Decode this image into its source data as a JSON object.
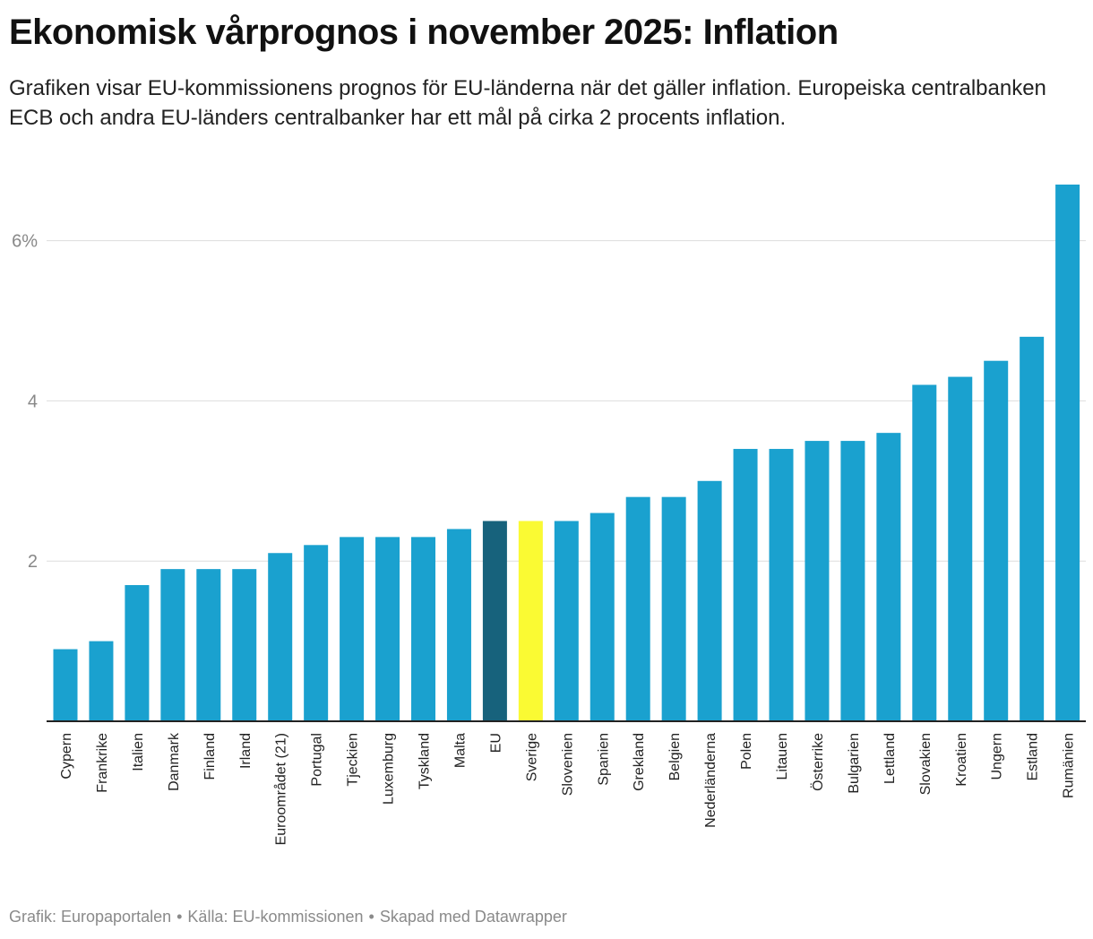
{
  "header": {
    "title": "Ekonomisk vårprognos i november 2025: Inflation",
    "subtitle": "Grafiken visar EU-kommissionens prognos för EU-länderna när det gäller inflation. Europeiska centralbanken ECB och andra EU-länders centralbanker har ett mål på cirka 2 procents inflation."
  },
  "footer": {
    "graphic": "Grafik: Europaportalen",
    "source": "Källa: EU-kommissionen",
    "made_with": "Skapad med Datawrapper",
    "separator": "•"
  },
  "colors": {
    "bar": "#1aa1cf",
    "eu_bar": "#17627c",
    "sweden_bar": "#fafa33",
    "grid": "#dddddd",
    "axis": "#222222",
    "tick_label": "#888888"
  },
  "chart_data": {
    "type": "bar",
    "title": "Ekonomisk vårprognos i november 2025: Inflation",
    "xlabel": "",
    "ylabel": "",
    "ylim": [
      0,
      6.7
    ],
    "yticks": [
      {
        "value": 2,
        "label": "2"
      },
      {
        "value": 4,
        "label": "4"
      },
      {
        "value": 6,
        "label": "6%"
      }
    ],
    "grid": true,
    "highlight": {
      "EU": "eu_bar",
      "Sverige": "sweden_bar"
    },
    "categories": [
      "Cypern",
      "Frankrike",
      "Italien",
      "Danmark",
      "Finland",
      "Irland",
      "Euroområdet (21)",
      "Portugal",
      "Tjeckien",
      "Luxemburg",
      "Tyskland",
      "Malta",
      "EU",
      "Sverige",
      "Slovenien",
      "Spanien",
      "Grekland",
      "Belgien",
      "Nederländerna",
      "Polen",
      "Litauen",
      "Österrike",
      "Bulgarien",
      "Lettland",
      "Slovakien",
      "Kroatien",
      "Ungern",
      "Estland",
      "Rumänien"
    ],
    "values": [
      0.9,
      1.0,
      1.7,
      1.9,
      1.9,
      1.9,
      2.1,
      2.2,
      2.3,
      2.3,
      2.3,
      2.4,
      2.5,
      2.5,
      2.5,
      2.6,
      2.8,
      2.8,
      3.0,
      3.4,
      3.4,
      3.5,
      3.5,
      3.6,
      4.2,
      4.3,
      4.5,
      4.8,
      6.7
    ]
  }
}
